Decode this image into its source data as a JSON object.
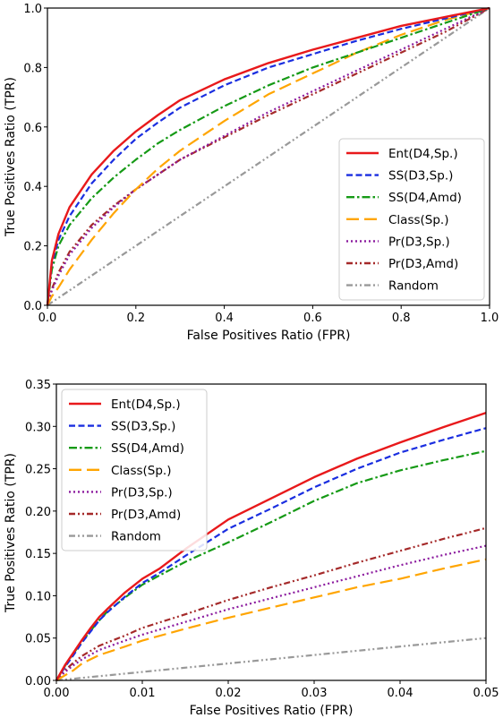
{
  "chart_data": [
    {
      "type": "line",
      "xlabel": "False Positives Ratio (FPR)",
      "ylabel": "True Positives Ratio (TPR)",
      "xlim": [
        0,
        1
      ],
      "ylim": [
        0,
        1
      ],
      "xticks": [
        "0.0",
        "0.2",
        "0.4",
        "0.6",
        "0.8",
        "1.0"
      ],
      "yticks": [
        "0.0",
        "0.2",
        "0.4",
        "0.6",
        "0.8",
        "1.0"
      ],
      "xtick_values": [
        0,
        0.2,
        0.4,
        0.6,
        0.8,
        1.0
      ],
      "ytick_values": [
        0,
        0.2,
        0.4,
        0.6,
        0.8,
        1.0
      ],
      "grid": false,
      "legend_position": "lower-right",
      "series": [
        {
          "name": "Ent(D4,Sp.)",
          "color": "#e8191b",
          "dash": "solid",
          "x": [
            0,
            0.01,
            0.025,
            0.05,
            0.1,
            0.15,
            0.2,
            0.25,
            0.3,
            0.4,
            0.5,
            0.6,
            0.7,
            0.8,
            0.9,
            1.0
          ],
          "y": [
            0,
            0.15,
            0.24,
            0.33,
            0.44,
            0.52,
            0.585,
            0.64,
            0.69,
            0.76,
            0.815,
            0.86,
            0.9,
            0.94,
            0.97,
            1.0
          ]
        },
        {
          "name": "SS(D3,Sp.)",
          "color": "#1a2ee0",
          "dash": "dashed",
          "x": [
            0,
            0.01,
            0.025,
            0.05,
            0.1,
            0.15,
            0.2,
            0.25,
            0.3,
            0.4,
            0.5,
            0.6,
            0.7,
            0.8,
            0.9,
            1.0
          ],
          "y": [
            0,
            0.14,
            0.22,
            0.3,
            0.41,
            0.49,
            0.56,
            0.615,
            0.665,
            0.74,
            0.8,
            0.845,
            0.89,
            0.93,
            0.965,
            1.0
          ]
        },
        {
          "name": "SS(D4,Amd)",
          "color": "#169a16",
          "dash": "dashdot",
          "x": [
            0,
            0.01,
            0.025,
            0.05,
            0.1,
            0.15,
            0.2,
            0.25,
            0.3,
            0.4,
            0.5,
            0.6,
            0.7,
            0.8,
            0.9,
            1.0
          ],
          "y": [
            0,
            0.12,
            0.2,
            0.27,
            0.36,
            0.43,
            0.49,
            0.545,
            0.59,
            0.67,
            0.74,
            0.8,
            0.85,
            0.9,
            0.95,
            1.0
          ]
        },
        {
          "name": "Class(Sp.)",
          "color": "#ffa500",
          "dash": "longdash",
          "x": [
            0,
            0.01,
            0.025,
            0.05,
            0.1,
            0.15,
            0.2,
            0.25,
            0.3,
            0.4,
            0.5,
            0.6,
            0.7,
            0.8,
            0.9,
            1.0
          ],
          "y": [
            0,
            0.03,
            0.06,
            0.12,
            0.22,
            0.31,
            0.39,
            0.46,
            0.52,
            0.62,
            0.71,
            0.78,
            0.85,
            0.91,
            0.96,
            1.0
          ]
        },
        {
          "name": "Pr(D3,Sp.)",
          "color": "#8b1a9e",
          "dash": "dotted",
          "x": [
            0,
            0.01,
            0.025,
            0.05,
            0.1,
            0.15,
            0.2,
            0.25,
            0.3,
            0.4,
            0.5,
            0.6,
            0.7,
            0.8,
            0.9,
            1.0
          ],
          "y": [
            0,
            0.05,
            0.1,
            0.17,
            0.26,
            0.33,
            0.39,
            0.44,
            0.49,
            0.57,
            0.65,
            0.72,
            0.79,
            0.86,
            0.93,
            1.0
          ]
        },
        {
          "name": "Pr(D3,Amd)",
          "color": "#a52a2a",
          "dash": "dashdotdot",
          "x": [
            0,
            0.01,
            0.025,
            0.05,
            0.1,
            0.15,
            0.2,
            0.25,
            0.3,
            0.4,
            0.5,
            0.6,
            0.7,
            0.8,
            0.9,
            1.0
          ],
          "y": [
            0,
            0.055,
            0.11,
            0.18,
            0.27,
            0.335,
            0.39,
            0.44,
            0.49,
            0.565,
            0.64,
            0.71,
            0.78,
            0.85,
            0.92,
            1.0
          ]
        },
        {
          "name": "Random",
          "color": "#999999",
          "dash": "dashdotdot",
          "x": [
            0,
            1.0
          ],
          "y": [
            0,
            1.0
          ]
        }
      ]
    },
    {
      "type": "line",
      "xlabel": "False Positives Ratio (FPR)",
      "ylabel": "True Positives Ratio (TPR)",
      "xlim": [
        0,
        0.05
      ],
      "ylim": [
        0,
        0.35
      ],
      "xticks": [
        "0.00",
        "0.01",
        "0.02",
        "0.03",
        "0.04",
        "0.05"
      ],
      "yticks": [
        "0.00",
        "0.05",
        "0.10",
        "0.15",
        "0.20",
        "0.25",
        "0.30",
        "0.35"
      ],
      "xtick_values": [
        0,
        0.01,
        0.02,
        0.03,
        0.04,
        0.05
      ],
      "ytick_values": [
        0,
        0.05,
        0.1,
        0.15,
        0.2,
        0.25,
        0.3,
        0.35
      ],
      "grid": false,
      "legend_position": "upper-left",
      "series": [
        {
          "name": "Ent(D4,Sp.)",
          "color": "#e8191b",
          "dash": "solid",
          "x": [
            0,
            0.001,
            0.002,
            0.003,
            0.004,
            0.005,
            0.006,
            0.008,
            0.01,
            0.012,
            0.015,
            0.02,
            0.025,
            0.03,
            0.035,
            0.04,
            0.045,
            0.05
          ],
          "y": [
            0,
            0.018,
            0.033,
            0.048,
            0.062,
            0.075,
            0.085,
            0.104,
            0.12,
            0.132,
            0.155,
            0.19,
            0.215,
            0.24,
            0.262,
            0.281,
            0.299,
            0.316
          ]
        },
        {
          "name": "SS(D3,Sp.)",
          "color": "#1a2ee0",
          "dash": "dashed",
          "x": [
            0,
            0.001,
            0.002,
            0.003,
            0.004,
            0.005,
            0.006,
            0.008,
            0.01,
            0.012,
            0.015,
            0.02,
            0.025,
            0.03,
            0.035,
            0.04,
            0.045,
            0.05
          ],
          "y": [
            0,
            0.016,
            0.03,
            0.045,
            0.058,
            0.071,
            0.081,
            0.099,
            0.115,
            0.127,
            0.147,
            0.179,
            0.203,
            0.228,
            0.25,
            0.269,
            0.284,
            0.298
          ]
        },
        {
          "name": "SS(D4,Amd)",
          "color": "#169a16",
          "dash": "dashdot",
          "x": [
            0,
            0.001,
            0.002,
            0.003,
            0.004,
            0.005,
            0.006,
            0.008,
            0.01,
            0.012,
            0.015,
            0.02,
            0.025,
            0.03,
            0.035,
            0.04,
            0.045,
            0.05
          ],
          "y": [
            0,
            0.017,
            0.032,
            0.046,
            0.059,
            0.071,
            0.082,
            0.098,
            0.113,
            0.124,
            0.14,
            0.163,
            0.187,
            0.212,
            0.233,
            0.248,
            0.26,
            0.271
          ]
        },
        {
          "name": "Class(Sp.)",
          "color": "#ffa500",
          "dash": "longdash",
          "x": [
            0,
            0.001,
            0.002,
            0.003,
            0.005,
            0.008,
            0.01,
            0.015,
            0.02,
            0.025,
            0.03,
            0.035,
            0.04,
            0.045,
            0.05
          ],
          "y": [
            0,
            0.006,
            0.012,
            0.02,
            0.03,
            0.04,
            0.047,
            0.061,
            0.074,
            0.086,
            0.098,
            0.11,
            0.12,
            0.132,
            0.143
          ]
        },
        {
          "name": "Pr(D3,Sp.)",
          "color": "#8b1a9e",
          "dash": "dotted",
          "x": [
            0,
            0.001,
            0.002,
            0.003,
            0.005,
            0.008,
            0.01,
            0.015,
            0.02,
            0.025,
            0.03,
            0.035,
            0.04,
            0.045,
            0.05
          ],
          "y": [
            0,
            0.01,
            0.018,
            0.025,
            0.036,
            0.047,
            0.054,
            0.069,
            0.084,
            0.097,
            0.11,
            0.123,
            0.136,
            0.148,
            0.159
          ]
        },
        {
          "name": "Pr(D3,Amd)",
          "color": "#a52a2a",
          "dash": "dashdotdot",
          "x": [
            0,
            0.001,
            0.002,
            0.003,
            0.005,
            0.008,
            0.01,
            0.015,
            0.02,
            0.025,
            0.03,
            0.035,
            0.04,
            0.045,
            0.05
          ],
          "y": [
            0,
            0.012,
            0.021,
            0.029,
            0.041,
            0.053,
            0.062,
            0.078,
            0.095,
            0.11,
            0.124,
            0.139,
            0.153,
            0.167,
            0.18
          ]
        },
        {
          "name": "Random",
          "color": "#999999",
          "dash": "dashdotdot",
          "x": [
            0,
            0.05
          ],
          "y": [
            0,
            0.05
          ]
        }
      ]
    }
  ]
}
